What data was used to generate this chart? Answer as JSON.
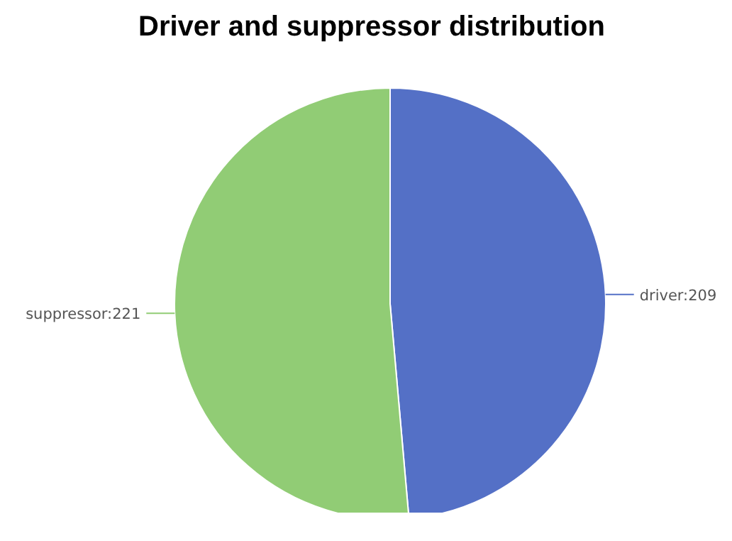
{
  "chart_data": {
    "type": "pie",
    "title": "Driver and suppressor distribution",
    "categories": [
      "driver",
      "suppressor"
    ],
    "values": [
      209,
      221
    ],
    "colors": [
      "#5470c6",
      "#91cc75"
    ],
    "value_labels": [
      "209",
      "221"
    ]
  }
}
